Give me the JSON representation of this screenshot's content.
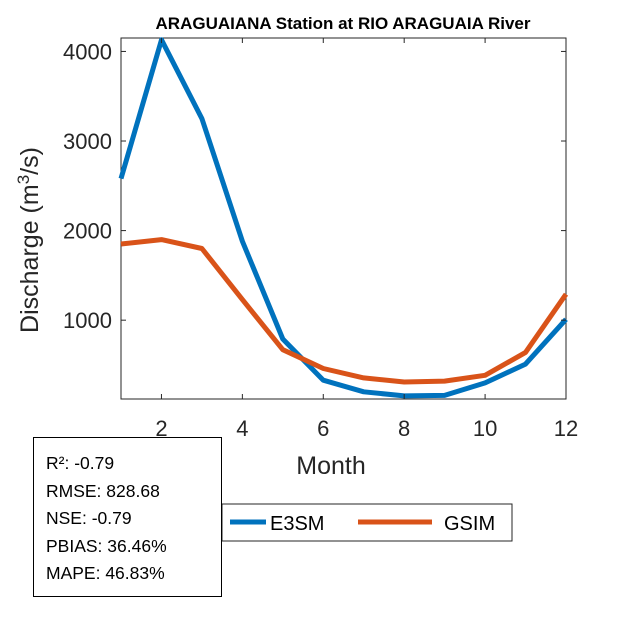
{
  "chart_data": {
    "type": "line",
    "title": "ARAGUAIANA  Station at  RIO ARAGUAIA  River",
    "xlabel": "Month",
    "ylabel": "Discharge (m³/s)",
    "ylabel_base": "Discharge (m",
    "ylabel_sup": "3",
    "ylabel_tail": "/s)",
    "xlim": [
      1,
      12
    ],
    "ylim": [
      120,
      4150
    ],
    "x": [
      1,
      2,
      3,
      4,
      5,
      6,
      7,
      8,
      9,
      10,
      11,
      12
    ],
    "xticks": [
      2,
      4,
      6,
      8,
      10,
      12
    ],
    "yticks": [
      1000,
      2000,
      3000,
      4000
    ],
    "series": [
      {
        "name": "E3SM",
        "color": "#0072BD",
        "values": [
          2580,
          4130,
          3250,
          1880,
          790,
          330,
          200,
          155,
          160,
          300,
          510,
          1010
        ]
      },
      {
        "name": "GSIM",
        "color": "#D95319",
        "values": [
          1850,
          1900,
          1800,
          1230,
          670,
          460,
          355,
          310,
          320,
          385,
          640,
          1290
        ]
      }
    ]
  },
  "stats": {
    "r2": "R²: -0.79",
    "rmse": "RMSE: 828.68",
    "nse": "NSE: -0.79",
    "pbias": "PBIAS: 36.46%",
    "mape": "MAPE: 46.83%"
  }
}
